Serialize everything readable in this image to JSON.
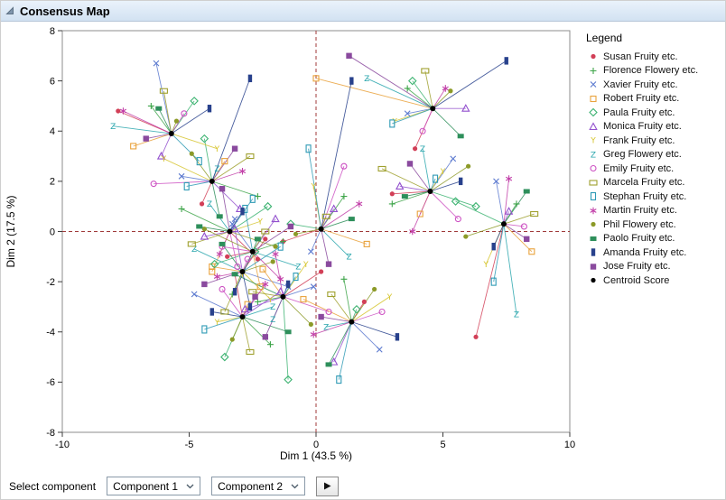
{
  "window": {
    "title": "Consensus Map"
  },
  "legend": {
    "title": "Legend"
  },
  "controls": {
    "label": "Select component",
    "dropdowns": [
      {
        "value": "Component 1"
      },
      {
        "value": "Component 2"
      }
    ]
  },
  "chart_data": {
    "type": "scatter",
    "title": "Consensus Map",
    "xlabel": "Dim 1 (43.5 %)",
    "ylabel": "Dim 2 (17.5 %)",
    "xlim": [
      -10,
      10
    ],
    "ylim": [
      -8,
      8
    ],
    "xticks": [
      -10,
      -5,
      0,
      5,
      10
    ],
    "yticks": [
      -8,
      -6,
      -4,
      -2,
      0,
      2,
      4,
      6,
      8
    ],
    "grid": false,
    "legend_position": "right",
    "reference_lines": {
      "x": 0,
      "y": 0,
      "style": "dashed",
      "color": "#a03a3a"
    },
    "centroid": {
      "label": "Centroid Score",
      "color": "#000000",
      "marker": "dot",
      "points": [
        [
          -5.7,
          3.9
        ],
        [
          -4.1,
          2.0
        ],
        [
          -3.4,
          0.0
        ],
        [
          -2.5,
          -0.8
        ],
        [
          -2.9,
          -1.6
        ],
        [
          -2.9,
          -3.4
        ],
        [
          -1.3,
          -2.6
        ],
        [
          0.2,
          0.1
        ],
        [
          1.4,
          -3.6
        ],
        [
          4.6,
          4.9
        ],
        [
          4.5,
          1.6
        ],
        [
          7.4,
          0.3
        ]
      ]
    },
    "series": [
      {
        "name": "Susan Fruity etc.",
        "marker": "dot",
        "color": "#d23f57",
        "points": [
          [
            -7.8,
            4.8
          ],
          [
            -4.5,
            1.1
          ],
          [
            -2.3,
            -1.1
          ],
          [
            -3.5,
            -1.0
          ],
          [
            -2.0,
            -0.3
          ],
          [
            -3.2,
            -1.7
          ],
          [
            0.2,
            -1.6
          ],
          [
            -1.3,
            -0.4
          ],
          [
            1.9,
            -2.8
          ],
          [
            3.9,
            3.3
          ],
          [
            3.0,
            1.5
          ],
          [
            6.3,
            -4.2
          ]
        ]
      },
      {
        "name": "Florence Flowery etc.",
        "marker": "plus",
        "color": "#3fa54a",
        "points": [
          [
            -6.5,
            5.0
          ],
          [
            -2.3,
            1.4
          ],
          [
            -5.3,
            0.9
          ],
          [
            -1.3,
            -0.4
          ],
          [
            -3.3,
            -2.5
          ],
          [
            -1.8,
            -4.5
          ],
          [
            -2.3,
            -2.8
          ],
          [
            1.1,
            1.4
          ],
          [
            1.1,
            -1.9
          ],
          [
            3.6,
            5.7
          ],
          [
            3.0,
            1.1
          ],
          [
            7.9,
            1.1
          ]
        ]
      },
      {
        "name": "Xavier Fruity etc.",
        "marker": "x",
        "color": "#5b79cf",
        "points": [
          [
            -6.3,
            6.7
          ],
          [
            -5.3,
            2.2
          ],
          [
            -3.2,
            0.5
          ],
          [
            -3.3,
            0.3
          ],
          [
            -1.1,
            -2.2
          ],
          [
            -4.8,
            -2.5
          ],
          [
            -0.1,
            -2.2
          ],
          [
            -0.2,
            -0.8
          ],
          [
            2.5,
            -4.7
          ],
          [
            3.6,
            4.7
          ],
          [
            5.4,
            2.9
          ],
          [
            7.1,
            2.0
          ]
        ]
      },
      {
        "name": "Robert Fruity etc.",
        "marker": "square-open",
        "color": "#e9a23c",
        "points": [
          [
            -7.2,
            3.4
          ],
          [
            -3.6,
            2.8
          ],
          [
            -4.1,
            -1.6
          ],
          [
            -2.2,
            -2.2
          ],
          [
            -4.1,
            -1.4
          ],
          [
            -2.7,
            -2.9
          ],
          [
            -2.1,
            -1.5
          ],
          [
            2.0,
            -0.5
          ],
          [
            -0.5,
            -2.7
          ],
          [
            0.0,
            6.1
          ],
          [
            4.1,
            0.7
          ],
          [
            8.5,
            -0.8
          ]
        ]
      },
      {
        "name": "Paula Fruity etc.",
        "marker": "diamond-open",
        "color": "#3cb371",
        "points": [
          [
            -4.8,
            5.2
          ],
          [
            -4.4,
            3.7
          ],
          [
            -1.9,
            1.0
          ],
          [
            -4.0,
            -1.3
          ],
          [
            -2.4,
            -0.8
          ],
          [
            -3.6,
            -5.0
          ],
          [
            -1.1,
            -5.9
          ],
          [
            -1.0,
            0.3
          ],
          [
            1.6,
            -3.1
          ],
          [
            3.8,
            6.0
          ],
          [
            6.3,
            1.0
          ],
          [
            5.5,
            1.2
          ]
        ]
      },
      {
        "name": "Monica Fruity etc.",
        "marker": "triangle-open",
        "color": "#9351ce",
        "points": [
          [
            -6.1,
            3.0
          ],
          [
            -3.0,
            0.9
          ],
          [
            -4.4,
            -0.2
          ],
          [
            -1.6,
            0.5
          ],
          [
            -3.2,
            0.1
          ],
          [
            -1.4,
            -2.4
          ],
          [
            -2.8,
            -3.1
          ],
          [
            0.7,
            0.9
          ],
          [
            0.7,
            -5.2
          ],
          [
            5.9,
            4.9
          ],
          [
            3.3,
            1.8
          ],
          [
            7.6,
            0.8
          ]
        ]
      },
      {
        "name": "Frank Fruity etc.",
        "marker": "letter-Y",
        "color": "#d6c52f",
        "points": [
          [
            -3.9,
            3.3
          ],
          [
            -6.0,
            2.9
          ],
          [
            -2.2,
            0.4
          ],
          [
            -2.9,
            -1.7
          ],
          [
            -1.8,
            -2.7
          ],
          [
            -3.9,
            -3.6
          ],
          [
            -0.4,
            -1.3
          ],
          [
            -0.1,
            1.8
          ],
          [
            2.9,
            -2.6
          ],
          [
            3.1,
            4.4
          ],
          [
            5.0,
            2.4
          ],
          [
            6.7,
            -1.3
          ]
        ]
      },
      {
        "name": "Greg Flowery etc.",
        "marker": "letter-Z",
        "color": "#2aa6ad",
        "points": [
          [
            -8.0,
            4.2
          ],
          [
            -3.9,
            2.5
          ],
          [
            -4.2,
            1.1
          ],
          [
            -0.7,
            -1.4
          ],
          [
            -4.8,
            -0.7
          ],
          [
            -1.7,
            -3.0
          ],
          [
            -1.7,
            -3.5
          ],
          [
            1.3,
            -1.0
          ],
          [
            0.4,
            -3.8
          ],
          [
            2.0,
            6.1
          ],
          [
            4.2,
            3.3
          ],
          [
            7.9,
            -3.3
          ]
        ]
      },
      {
        "name": "Emily Fruity etc.",
        "marker": "circle-open",
        "color": "#cd52c3",
        "points": [
          [
            -5.2,
            4.7
          ],
          [
            -6.4,
            1.9
          ],
          [
            -3.1,
            -1.4
          ],
          [
            -3.7,
            -0.6
          ],
          [
            -2.7,
            -1.1
          ],
          [
            -3.7,
            -2.3
          ],
          [
            0.5,
            -3.2
          ],
          [
            1.1,
            2.6
          ],
          [
            2.6,
            -3.2
          ],
          [
            4.2,
            4.0
          ],
          [
            5.6,
            0.5
          ],
          [
            8.2,
            0.2
          ]
        ]
      },
      {
        "name": "Marcela Fruity etc.",
        "marker": "hrect-open",
        "color": "#9fa02e",
        "points": [
          [
            -6.0,
            5.6
          ],
          [
            -2.6,
            3.0
          ],
          [
            -4.9,
            -0.5
          ],
          [
            -2.0,
            0.0
          ],
          [
            -3.6,
            -3.2
          ],
          [
            -2.6,
            -4.8
          ],
          [
            -2.5,
            -2.4
          ],
          [
            0.4,
            0.6
          ],
          [
            0.6,
            -2.5
          ],
          [
            4.3,
            6.4
          ],
          [
            2.6,
            2.5
          ],
          [
            8.6,
            0.7
          ]
        ]
      },
      {
        "name": "Stephan Fruity etc.",
        "marker": "vrect-open",
        "color": "#2e9ab5",
        "points": [
          [
            -4.6,
            2.8
          ],
          [
            -5.1,
            1.8
          ],
          [
            -2.5,
            1.3
          ],
          [
            -2.8,
            0.9
          ],
          [
            -1.4,
            -0.6
          ],
          [
            -4.4,
            -3.9
          ],
          [
            -0.8,
            -1.8
          ],
          [
            -0.3,
            3.3
          ],
          [
            0.9,
            -5.9
          ],
          [
            3.0,
            4.3
          ],
          [
            4.7,
            2.1
          ],
          [
            7.0,
            -2.0
          ]
        ]
      },
      {
        "name": "Martin Fruity etc.",
        "marker": "asterisk",
        "color": "#c23fa8",
        "points": [
          [
            -7.6,
            4.8
          ],
          [
            -2.9,
            2.4
          ],
          [
            -3.8,
            -0.9
          ],
          [
            -1.4,
            -1.9
          ],
          [
            -3.9,
            -1.8
          ],
          [
            -2.0,
            -2.1
          ],
          [
            -1.6,
            -0.9
          ],
          [
            1.7,
            1.1
          ],
          [
            -0.1,
            -4.1
          ],
          [
            5.1,
            5.7
          ],
          [
            3.8,
            0.0
          ],
          [
            7.6,
            2.1
          ]
        ]
      },
      {
        "name": "Phil Flowery etc.",
        "marker": "dot",
        "color": "#8c9a28",
        "points": [
          [
            -5.5,
            4.4
          ],
          [
            -4.9,
            3.1
          ],
          [
            -1.6,
            -0.6
          ],
          [
            -4.4,
            0.1
          ],
          [
            -1.7,
            -1.2
          ],
          [
            -3.3,
            -4.3
          ],
          [
            -0.2,
            -3.7
          ],
          [
            -0.8,
            -0.1
          ],
          [
            2.3,
            -2.3
          ],
          [
            5.3,
            5.6
          ],
          [
            6.0,
            2.6
          ],
          [
            5.9,
            -0.2
          ]
        ]
      },
      {
        "name": "Paolo Fruity etc.",
        "marker": "rect-filled",
        "color": "#2e8f5b",
        "points": [
          [
            -6.2,
            4.9
          ],
          [
            -3.8,
            0.6
          ],
          [
            -4.6,
            0.2
          ],
          [
            -2.3,
            -0.3
          ],
          [
            -3.7,
            -0.5
          ],
          [
            -1.1,
            -4.0
          ],
          [
            -3.2,
            -1.7
          ],
          [
            1.4,
            0.5
          ],
          [
            0.5,
            -5.3
          ],
          [
            5.7,
            3.8
          ],
          [
            3.5,
            1.4
          ],
          [
            8.3,
            1.6
          ]
        ]
      },
      {
        "name": "Amanda Fruity etc.",
        "marker": "vrect-filled",
        "color": "#28418c",
        "points": [
          [
            -4.2,
            4.9
          ],
          [
            -2.6,
            6.1
          ],
          [
            -2.9,
            0.8
          ],
          [
            -3.2,
            -2.4
          ],
          [
            -2.6,
            -3.0
          ],
          [
            -4.1,
            -3.2
          ],
          [
            -1.1,
            -2.1
          ],
          [
            1.4,
            6.0
          ],
          [
            3.2,
            -4.2
          ],
          [
            7.5,
            6.8
          ],
          [
            5.7,
            2.0
          ],
          [
            7.0,
            -0.6
          ]
        ]
      },
      {
        "name": "Jose Fruity etc.",
        "marker": "square-filled",
        "color": "#8a4a9e",
        "points": [
          [
            -6.7,
            3.7
          ],
          [
            -3.2,
            3.3
          ],
          [
            -3.7,
            1.7
          ],
          [
            -1.0,
            0.2
          ],
          [
            -4.4,
            -2.1
          ],
          [
            -2.4,
            -2.6
          ],
          [
            -2.0,
            -4.2
          ],
          [
            0.5,
            -1.3
          ],
          [
            0.2,
            -3.4
          ],
          [
            1.3,
            7.0
          ],
          [
            3.7,
            2.7
          ],
          [
            8.3,
            -0.3
          ]
        ]
      }
    ]
  }
}
